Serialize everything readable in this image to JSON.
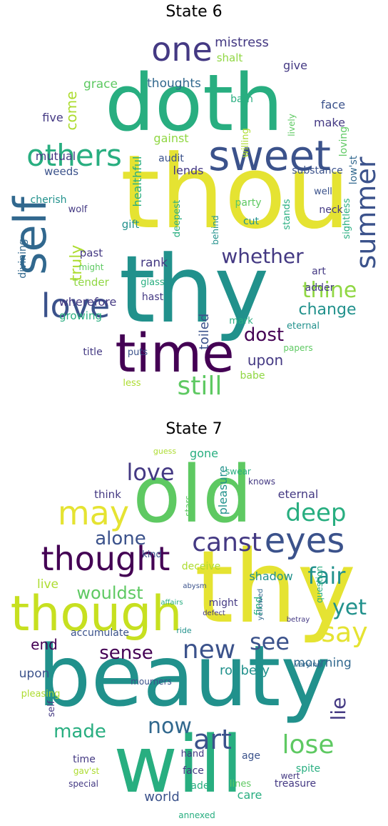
{
  "palette": {
    "yellow": "#e5e332",
    "lime": "#c7e020",
    "green": "#5ec962",
    "mint": "#90d743",
    "teal": "#21918c",
    "sea": "#28ae80",
    "blue": "#3b528b",
    "slate": "#31688e",
    "indigo": "#443983",
    "purple": "#440154",
    "pale": "#addc30"
  },
  "panels": [
    {
      "title": "State 6",
      "words": [
        {
          "text": "thou",
          "color": "yellow"
        },
        {
          "text": "doth",
          "color": "sea"
        },
        {
          "text": "thy",
          "color": "teal"
        },
        {
          "text": "time",
          "color": "purple"
        },
        {
          "text": "sweet",
          "color": "blue"
        },
        {
          "text": "self",
          "color": "slate"
        },
        {
          "text": "one",
          "color": "indigo"
        },
        {
          "text": "others",
          "color": "sea"
        },
        {
          "text": "love",
          "color": "blue"
        },
        {
          "text": "still",
          "color": "green"
        },
        {
          "text": "summer",
          "color": "blue"
        },
        {
          "text": "whether",
          "color": "indigo"
        },
        {
          "text": "thine",
          "color": "mint"
        },
        {
          "text": "dost",
          "color": "purple"
        },
        {
          "text": "change",
          "color": "teal"
        },
        {
          "text": "truly",
          "color": "pale"
        },
        {
          "text": "upon",
          "color": "indigo"
        },
        {
          "text": "mistress",
          "color": "indigo"
        },
        {
          "text": "thoughts",
          "color": "slate"
        },
        {
          "text": "shalt",
          "color": "mint"
        },
        {
          "text": "grace",
          "color": "green"
        },
        {
          "text": "give",
          "color": "indigo"
        },
        {
          "text": "come",
          "color": "pale"
        },
        {
          "text": "bath",
          "color": "sea"
        },
        {
          "text": "face",
          "color": "blue"
        },
        {
          "text": "make",
          "color": "indigo"
        },
        {
          "text": "five",
          "color": "indigo"
        },
        {
          "text": "gainst",
          "color": "mint"
        },
        {
          "text": "mutual",
          "color": "indigo"
        },
        {
          "text": "audit",
          "color": "blue"
        },
        {
          "text": "weeds",
          "color": "blue"
        },
        {
          "text": "lends",
          "color": "indigo"
        },
        {
          "text": "substance",
          "color": "blue"
        },
        {
          "text": "loving",
          "color": "green"
        },
        {
          "text": "low'st",
          "color": "slate"
        },
        {
          "text": "healthful",
          "color": "sea"
        },
        {
          "text": "cherish",
          "color": "teal"
        },
        {
          "text": "well",
          "color": "blue"
        },
        {
          "text": "wolf",
          "color": "indigo"
        },
        {
          "text": "neck",
          "color": "indigo"
        },
        {
          "text": "party",
          "color": "green"
        },
        {
          "text": "gift",
          "color": "teal"
        },
        {
          "text": "deepest",
          "color": "sea"
        },
        {
          "text": "cut",
          "color": "teal"
        },
        {
          "text": "sightless",
          "color": "sea"
        },
        {
          "text": "divining",
          "color": "slate"
        },
        {
          "text": "behind",
          "color": "teal"
        },
        {
          "text": "stands",
          "color": "sea"
        },
        {
          "text": "past",
          "color": "indigo"
        },
        {
          "text": "rank",
          "color": "indigo"
        },
        {
          "text": "might",
          "color": "green"
        },
        {
          "text": "art",
          "color": "indigo"
        },
        {
          "text": "adder",
          "color": "indigo"
        },
        {
          "text": "tender",
          "color": "mint"
        },
        {
          "text": "glass",
          "color": "sea"
        },
        {
          "text": "hast",
          "color": "indigo"
        },
        {
          "text": "wherefore",
          "color": "indigo"
        },
        {
          "text": "growing",
          "color": "sea"
        },
        {
          "text": "toiled",
          "color": "blue"
        },
        {
          "text": "mark",
          "color": "sea"
        },
        {
          "text": "eternal",
          "color": "teal"
        },
        {
          "text": "title",
          "color": "indigo"
        },
        {
          "text": "puts",
          "color": "blue"
        },
        {
          "text": "papers",
          "color": "green"
        },
        {
          "text": "babe",
          "color": "mint"
        },
        {
          "text": "less",
          "color": "pale"
        },
        {
          "text": "lively",
          "color": "green"
        },
        {
          "text": "willing",
          "color": "pale"
        }
      ]
    },
    {
      "title": "State 7",
      "words": [
        {
          "text": "beauty",
          "color": "teal"
        },
        {
          "text": "thy",
          "color": "yellow"
        },
        {
          "text": "old",
          "color": "green"
        },
        {
          "text": "will",
          "color": "sea"
        },
        {
          "text": "though",
          "color": "lime"
        },
        {
          "text": "thought",
          "color": "purple"
        },
        {
          "text": "eyes",
          "color": "blue"
        },
        {
          "text": "canst",
          "color": "indigo"
        },
        {
          "text": "may",
          "color": "yellow"
        },
        {
          "text": "love",
          "color": "indigo"
        },
        {
          "text": "deep",
          "color": "sea"
        },
        {
          "text": "alone",
          "color": "blue"
        },
        {
          "text": "fair",
          "color": "teal"
        },
        {
          "text": "say",
          "color": "yellow"
        },
        {
          "text": "yet",
          "color": "teal"
        },
        {
          "text": "new",
          "color": "blue"
        },
        {
          "text": "see",
          "color": "blue"
        },
        {
          "text": "wouldst",
          "color": "green"
        },
        {
          "text": "sense",
          "color": "purple"
        },
        {
          "text": "art",
          "color": "blue"
        },
        {
          "text": "lose",
          "color": "green"
        },
        {
          "text": "now",
          "color": "slate"
        },
        {
          "text": "made",
          "color": "sea"
        },
        {
          "text": "lie",
          "color": "indigo"
        },
        {
          "text": "end",
          "color": "purple"
        },
        {
          "text": "robbery",
          "color": "teal"
        },
        {
          "text": "mourning",
          "color": "slate"
        },
        {
          "text": "upon",
          "color": "blue"
        },
        {
          "text": "live",
          "color": "pale"
        },
        {
          "text": "gone",
          "color": "sea"
        },
        {
          "text": "pleasure",
          "color": "teal"
        },
        {
          "text": "eternal",
          "color": "indigo"
        },
        {
          "text": "think",
          "color": "indigo"
        },
        {
          "text": "stars",
          "color": "green"
        },
        {
          "text": "kind",
          "color": "blue"
        },
        {
          "text": "deceive",
          "color": "pale"
        },
        {
          "text": "shadow",
          "color": "teal"
        },
        {
          "text": "find",
          "color": "sea"
        },
        {
          "text": "might",
          "color": "indigo"
        },
        {
          "text": "accumulate",
          "color": "blue"
        },
        {
          "text": "world",
          "color": "blue"
        },
        {
          "text": "care",
          "color": "sea"
        },
        {
          "text": "age",
          "color": "blue"
        },
        {
          "text": "face",
          "color": "indigo"
        },
        {
          "text": "fade",
          "color": "sea"
        },
        {
          "text": "time",
          "color": "indigo"
        },
        {
          "text": "spite",
          "color": "sea"
        },
        {
          "text": "treasure",
          "color": "indigo"
        },
        {
          "text": "lines",
          "color": "green"
        },
        {
          "text": "hand",
          "color": "indigo"
        },
        {
          "text": "self",
          "color": "indigo"
        },
        {
          "text": "mourners",
          "color": "blue"
        },
        {
          "text": "pleasing",
          "color": "pale"
        },
        {
          "text": "swear",
          "color": "sea"
        },
        {
          "text": "knows",
          "color": "indigo"
        },
        {
          "text": "guess",
          "color": "pale"
        },
        {
          "text": "question",
          "color": "sea"
        },
        {
          "text": "gav'st",
          "color": "pale"
        },
        {
          "text": "annexed",
          "color": "sea"
        },
        {
          "text": "wert",
          "color": "indigo"
        },
        {
          "text": "special",
          "color": "indigo"
        },
        {
          "text": "abysm",
          "color": "blue"
        },
        {
          "text": "affairs",
          "color": "sea"
        },
        {
          "text": "defect",
          "color": "indigo"
        },
        {
          "text": "ride",
          "color": "teal"
        },
        {
          "text": "betray",
          "color": "indigo"
        },
        {
          "text": "varying",
          "color": "slate"
        },
        {
          "text": "yellowed",
          "color": "slate"
        }
      ]
    }
  ]
}
